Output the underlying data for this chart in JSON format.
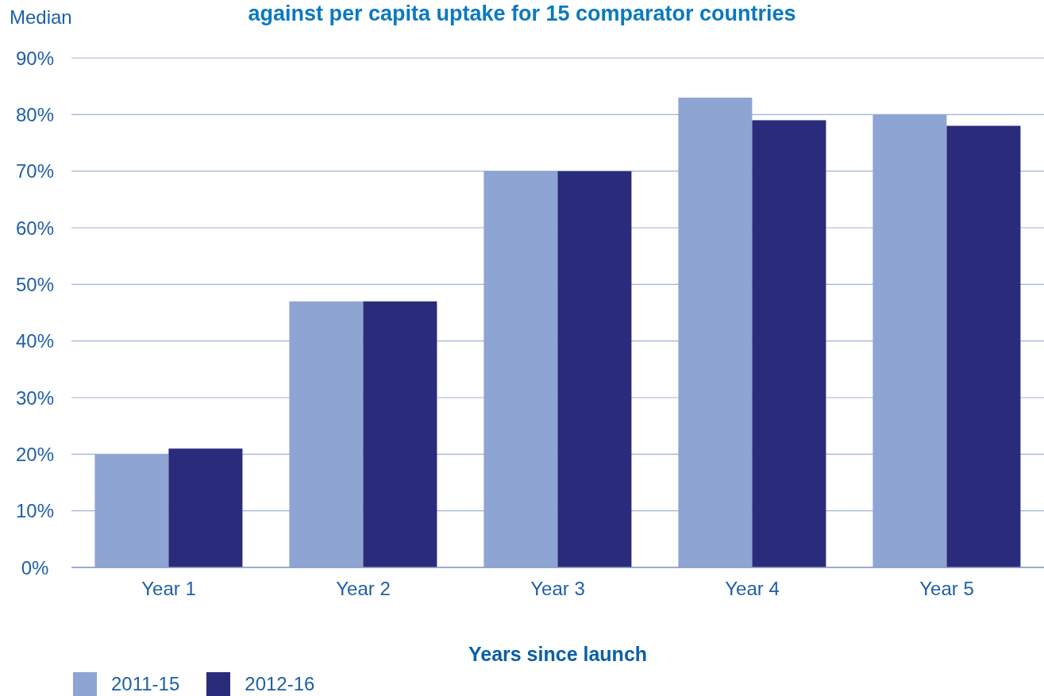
{
  "chart_data": {
    "type": "bar",
    "title": "against per capita uptake for 15 comparator countries",
    "ylabel": "Median",
    "xlabel": "Years since launch",
    "categories": [
      "Year 1",
      "Year 2",
      "Year 3",
      "Year 4",
      "Year 5"
    ],
    "series": [
      {
        "name": "2011-15",
        "color": "#8ea4d3",
        "values": [
          20,
          47,
          70,
          83,
          80
        ]
      },
      {
        "name": "2012-16",
        "color": "#2b2b7b",
        "values": [
          21,
          47,
          70,
          79,
          78
        ]
      }
    ],
    "ylim": [
      0,
      90
    ],
    "yticks": [
      {
        "value": 0,
        "label": "0%"
      },
      {
        "value": 10,
        "label": "10%"
      },
      {
        "value": 20,
        "label": "20%"
      },
      {
        "value": 30,
        "label": "30%"
      },
      {
        "value": 40,
        "label": "40%"
      },
      {
        "value": 50,
        "label": "50%"
      },
      {
        "value": 60,
        "label": "60%"
      },
      {
        "value": 70,
        "label": "70%"
      },
      {
        "value": 80,
        "label": "80%"
      },
      {
        "value": 90,
        "label": "90%"
      }
    ],
    "grid": "y",
    "legend": "bottom left"
  }
}
